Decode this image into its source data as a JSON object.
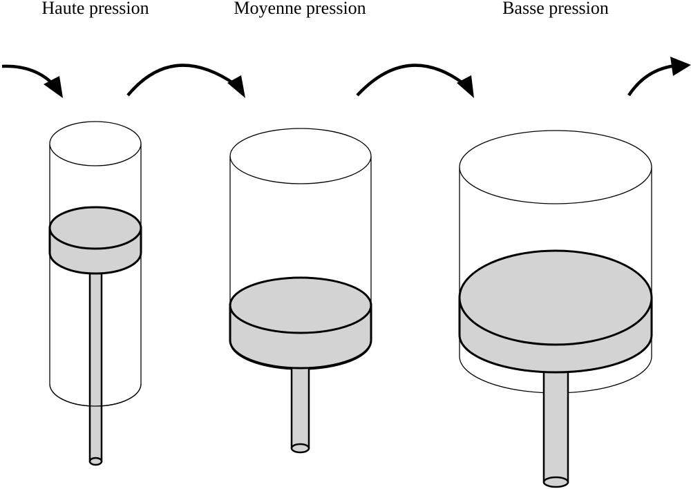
{
  "stages": [
    {
      "label": "Haute pression"
    },
    {
      "label": "Moyenne pression"
    },
    {
      "label": "Basse pression"
    }
  ],
  "colors": {
    "piston_fill": "#d3d3d3",
    "stroke": "#000000",
    "background": "#ffffff"
  }
}
